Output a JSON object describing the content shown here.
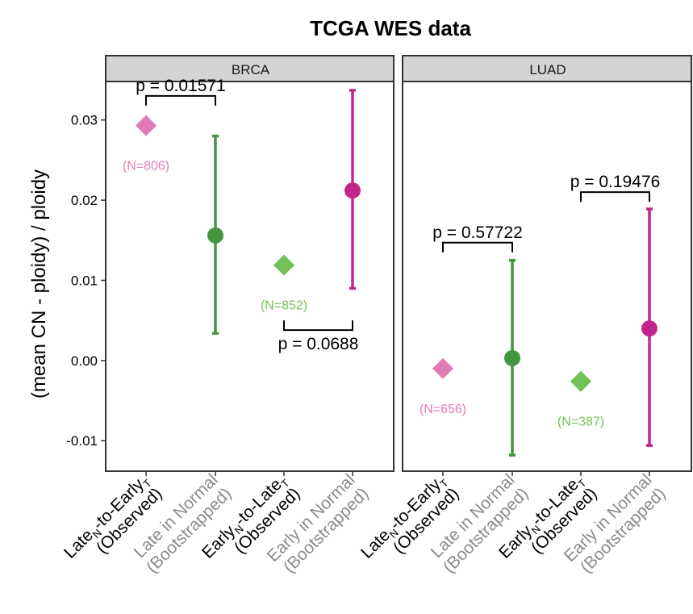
{
  "chart_data": {
    "type": "scatter",
    "title": "TCGA WES data",
    "ylabel": "(mean CN - ploidy) / ploidy",
    "ylim": [
      -0.0138,
      0.0348
    ],
    "yticks": [
      -0.01,
      0.0,
      0.01,
      0.02,
      0.03
    ],
    "ytick_labels": [
      "-0.01",
      "0.00",
      "0.01",
      "0.02",
      "0.03"
    ],
    "categories": [
      {
        "line1": [
          {
            "t": "Late"
          },
          {
            "t": "N",
            "sub": true
          },
          {
            "t": "-to-Early"
          },
          {
            "t": "T",
            "sub": true
          }
        ],
        "line2": "(Observed)",
        "muted": false
      },
      {
        "line1": [
          {
            "t": "Late in Normal"
          }
        ],
        "line2": "(Bootstrapped)",
        "muted": true
      },
      {
        "line1": [
          {
            "t": "Early"
          },
          {
            "t": "N",
            "sub": true
          },
          {
            "t": "-to-Late"
          },
          {
            "t": "T",
            "sub": true
          }
        ],
        "line2": "(Observed)",
        "muted": false
      },
      {
        "line1": [
          {
            "t": "Early in Normal"
          }
        ],
        "line2": "(Bootstrapped)",
        "muted": true
      }
    ],
    "colors": {
      "late_observed": "#e07cb5",
      "late_bootstrap": "#43963f",
      "early_observed": "#72c157",
      "early_bootstrap": "#c3268b",
      "category_text": "#000000",
      "category_text_muted": "#8a8a8a",
      "strip_fill": "#d4d4d4",
      "panel_border": "#333333"
    },
    "panels": [
      {
        "name": "BRCA",
        "observed": [
          {
            "cat": 0,
            "value": 0.0293,
            "n_label": "(N=806)",
            "color_key": "late_observed"
          },
          {
            "cat": 2,
            "value": 0.0119,
            "n_label": "(N=852)",
            "color_key": "early_observed"
          }
        ],
        "bootstrapped": [
          {
            "cat": 1,
            "value": 0.0156,
            "lower": 0.0034,
            "upper": 0.028,
            "color_key": "late_bootstrap"
          },
          {
            "cat": 3,
            "value": 0.0212,
            "lower": 0.009,
            "upper": 0.0337,
            "color_key": "early_bootstrap"
          }
        ],
        "pvalues": [
          {
            "cats": [
              0,
              1
            ],
            "label": "p = 0.01571",
            "side": "above",
            "bar_y": 0.033
          },
          {
            "cats": [
              2,
              3
            ],
            "label": "p = 0.0688",
            "side": "below",
            "bar_y": 0.0038
          }
        ]
      },
      {
        "name": "LUAD",
        "observed": [
          {
            "cat": 0,
            "value": -0.001,
            "n_label": "(N=656)",
            "color_key": "late_observed"
          },
          {
            "cat": 2,
            "value": -0.0026,
            "n_label": "(N=387)",
            "color_key": "early_observed"
          }
        ],
        "bootstrapped": [
          {
            "cat": 1,
            "value": 0.0003,
            "lower": -0.0118,
            "upper": 0.0125,
            "color_key": "late_bootstrap"
          },
          {
            "cat": 3,
            "value": 0.004,
            "lower": -0.0106,
            "upper": 0.0189,
            "color_key": "early_bootstrap"
          }
        ],
        "pvalues": [
          {
            "cats": [
              0,
              1
            ],
            "label": "p = 0.57722",
            "side": "above",
            "bar_y": 0.0147
          },
          {
            "cats": [
              2,
              3
            ],
            "label": "p = 0.19476",
            "side": "above",
            "bar_y": 0.021
          }
        ]
      }
    ]
  }
}
